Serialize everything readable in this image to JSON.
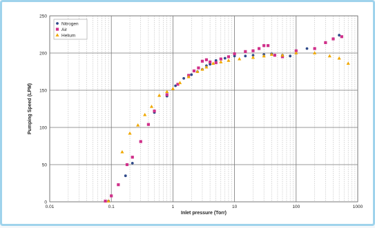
{
  "chart_data": {
    "type": "scatter",
    "title": "",
    "xlabel": "Inlet pressure (Torr)",
    "ylabel": "Pumping Speed (LPM)",
    "xscale": "log",
    "xlim": [
      0.01,
      1000
    ],
    "ylim": [
      0,
      250
    ],
    "x_ticks": [
      "0.01",
      "0.1",
      "1",
      "10",
      "100",
      "1000"
    ],
    "y_ticks": [
      "0",
      "50",
      "100",
      "150",
      "200",
      "250"
    ],
    "grid": true,
    "legend_position": "top-left",
    "series": [
      {
        "name": "Nitrogen",
        "color": "#2f4a8a",
        "marker": "circle",
        "points": [
          [
            0.09,
            1
          ],
          [
            0.17,
            35
          ],
          [
            0.22,
            52
          ],
          [
            0.3,
            81
          ],
          [
            0.5,
            120
          ],
          [
            0.8,
            142
          ],
          [
            1.1,
            156
          ],
          [
            1.5,
            166
          ],
          [
            2.0,
            171
          ],
          [
            2.5,
            175
          ],
          [
            3.0,
            178
          ],
          [
            3.5,
            183
          ],
          [
            4.0,
            185
          ],
          [
            5.0,
            190
          ],
          [
            7.0,
            193
          ],
          [
            10.0,
            196
          ],
          [
            15.0,
            196
          ],
          [
            20.0,
            197
          ],
          [
            30.0,
            198
          ],
          [
            40.0,
            199
          ],
          [
            60.0,
            197
          ],
          [
            80.0,
            196
          ],
          [
            150.0,
            206
          ],
          [
            300.0,
            214
          ],
          [
            500.0,
            224
          ]
        ]
      },
      {
        "name": "Air",
        "color": "#d0308a",
        "marker": "square",
        "points": [
          [
            0.08,
            1
          ],
          [
            0.1,
            8
          ],
          [
            0.13,
            23
          ],
          [
            0.18,
            50
          ],
          [
            0.22,
            60
          ],
          [
            0.3,
            81
          ],
          [
            0.4,
            104
          ],
          [
            0.5,
            122
          ],
          [
            0.8,
            144
          ],
          [
            1.2,
            158
          ],
          [
            1.8,
            170
          ],
          [
            2.2,
            176
          ],
          [
            2.6,
            180
          ],
          [
            3.0,
            189
          ],
          [
            3.5,
            191
          ],
          [
            4.0,
            188
          ],
          [
            5.0,
            187
          ],
          [
            6.0,
            192
          ],
          [
            8.0,
            195
          ],
          [
            10.0,
            199
          ],
          [
            15.0,
            202
          ],
          [
            20.0,
            203
          ],
          [
            25.0,
            206
          ],
          [
            30.0,
            210
          ],
          [
            35.0,
            210
          ],
          [
            45.0,
            197
          ],
          [
            60.0,
            195
          ],
          [
            100.0,
            203
          ],
          [
            200.0,
            206
          ],
          [
            300.0,
            214
          ],
          [
            400.0,
            219
          ],
          [
            550.0,
            222
          ]
        ]
      },
      {
        "name": "Helium",
        "color": "#f0a800",
        "marker": "triangle",
        "points": [
          [
            0.09,
            1
          ],
          [
            0.15,
            67
          ],
          [
            0.2,
            92
          ],
          [
            0.27,
            103
          ],
          [
            0.35,
            117
          ],
          [
            0.45,
            128
          ],
          [
            0.6,
            143
          ],
          [
            0.8,
            148
          ],
          [
            1.0,
            152
          ],
          [
            1.3,
            160
          ],
          [
            1.8,
            168
          ],
          [
            2.5,
            175
          ],
          [
            3.0,
            178
          ],
          [
            3.5,
            181
          ],
          [
            4.5,
            186
          ],
          [
            6.0,
            188
          ],
          [
            8.0,
            190
          ],
          [
            12.0,
            192
          ],
          [
            20.0,
            194
          ],
          [
            30.0,
            196
          ],
          [
            40.0,
            198
          ],
          [
            60.0,
            197
          ],
          [
            100.0,
            200
          ],
          [
            200.0,
            200
          ],
          [
            350.0,
            196
          ],
          [
            500.0,
            193
          ],
          [
            700.0,
            186
          ]
        ]
      }
    ]
  }
}
